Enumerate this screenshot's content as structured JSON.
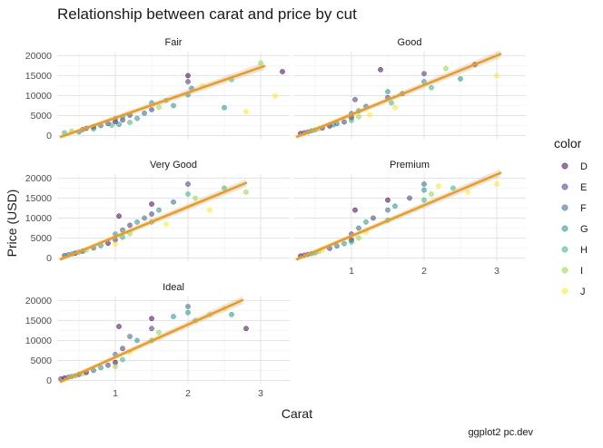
{
  "chart_data": {
    "type": "scatter",
    "title": "Relationship between carat and price by cut",
    "xlabel": "Carat",
    "ylabel": "Price (USD)",
    "caption": "ggplot2 pc.dev",
    "xlim": [
      0.2,
      3.4
    ],
    "ylim": [
      -800,
      21000
    ],
    "x_ticks": [
      1,
      2,
      3
    ],
    "y_ticks": [
      0,
      5000,
      10000,
      15000,
      20000
    ],
    "grid": true,
    "legend_title": "color",
    "legend_position": "right",
    "point_alpha": 0.55,
    "fit_line_color": "#F39C12",
    "fit_band_color": "#BBBBBB",
    "color_levels": [
      {
        "label": "D",
        "color": "#440154"
      },
      {
        "label": "E",
        "color": "#443983"
      },
      {
        "label": "F",
        "color": "#31688E"
      },
      {
        "label": "G",
        "color": "#21918C"
      },
      {
        "label": "H",
        "color": "#35B779"
      },
      {
        "label": "I",
        "color": "#90D743"
      },
      {
        "label": "J",
        "color": "#FDE725"
      }
    ],
    "panels": [
      {
        "label": "Fair",
        "fit": {
          "x0": 0.25,
          "x1": 3.05,
          "y0": -300,
          "y1": 17400
        },
        "points": [
          [
            0.3,
            700,
            "H"
          ],
          [
            0.4,
            1100,
            "I"
          ],
          [
            0.5,
            900,
            "G"
          ],
          [
            0.55,
            1500,
            "F"
          ],
          [
            0.6,
            1800,
            "E"
          ],
          [
            0.7,
            2200,
            "D"
          ],
          [
            0.7,
            1700,
            "G"
          ],
          [
            0.8,
            2500,
            "F"
          ],
          [
            0.9,
            3000,
            "E"
          ],
          [
            0.95,
            2600,
            "H"
          ],
          [
            1.0,
            3500,
            "D"
          ],
          [
            1.0,
            4200,
            "F"
          ],
          [
            1.05,
            2800,
            "G"
          ],
          [
            1.1,
            3900,
            "E"
          ],
          [
            1.1,
            4700,
            "G"
          ],
          [
            1.2,
            5100,
            "E"
          ],
          [
            1.2,
            3300,
            "H"
          ],
          [
            1.3,
            4300,
            "G"
          ],
          [
            1.4,
            5600,
            "F"
          ],
          [
            1.5,
            6500,
            "E"
          ],
          [
            1.5,
            8200,
            "G"
          ],
          [
            1.6,
            7100,
            "I"
          ],
          [
            1.7,
            8800,
            "H"
          ],
          [
            1.8,
            7500,
            "G"
          ],
          [
            2.0,
            13500,
            "E"
          ],
          [
            2.0,
            15000,
            "D"
          ],
          [
            2.0,
            10200,
            "G"
          ],
          [
            2.05,
            11800,
            "F"
          ],
          [
            2.2,
            12500,
            "J"
          ],
          [
            2.5,
            7000,
            "G"
          ],
          [
            2.6,
            14000,
            "H"
          ],
          [
            2.8,
            6000,
            "J"
          ],
          [
            3.0,
            18200,
            "I"
          ],
          [
            3.2,
            9900,
            "J"
          ],
          [
            3.3,
            16000,
            "D"
          ]
        ]
      },
      {
        "label": "Good",
        "fit": {
          "x0": 0.25,
          "x1": 3.05,
          "y0": -300,
          "y1": 20400
        },
        "points": [
          [
            0.3,
            500,
            "D"
          ],
          [
            0.35,
            700,
            "E"
          ],
          [
            0.4,
            900,
            "F"
          ],
          [
            0.45,
            1200,
            "G"
          ],
          [
            0.5,
            1400,
            "H"
          ],
          [
            0.55,
            1700,
            "I"
          ],
          [
            0.6,
            1900,
            "E"
          ],
          [
            0.7,
            2400,
            "D"
          ],
          [
            0.75,
            2700,
            "G"
          ],
          [
            0.8,
            3000,
            "F"
          ],
          [
            0.9,
            3400,
            "E"
          ],
          [
            1.0,
            4500,
            "D"
          ],
          [
            1.0,
            5500,
            "F"
          ],
          [
            1.0,
            3800,
            "H"
          ],
          [
            1.05,
            9000,
            "E"
          ],
          [
            1.1,
            6200,
            "G"
          ],
          [
            1.1,
            4700,
            "I"
          ],
          [
            1.2,
            7300,
            "F"
          ],
          [
            1.25,
            5200,
            "J"
          ],
          [
            1.4,
            16500,
            "D"
          ],
          [
            1.5,
            9500,
            "E"
          ],
          [
            1.5,
            11000,
            "G"
          ],
          [
            1.55,
            8200,
            "H"
          ],
          [
            1.6,
            7000,
            "J"
          ],
          [
            1.7,
            10500,
            "F"
          ],
          [
            2.0,
            13500,
            "G"
          ],
          [
            2.0,
            15500,
            "E"
          ],
          [
            2.1,
            12000,
            "H"
          ],
          [
            2.3,
            16800,
            "I"
          ],
          [
            2.5,
            14200,
            "G"
          ],
          [
            2.7,
            17800,
            "D"
          ],
          [
            3.0,
            15000,
            "J"
          ]
        ]
      },
      {
        "label": "Very Good",
        "fit": {
          "x0": 0.25,
          "x1": 2.8,
          "y0": -300,
          "y1": 18800
        },
        "points": [
          [
            0.3,
            600,
            "E"
          ],
          [
            0.35,
            800,
            "F"
          ],
          [
            0.4,
            1000,
            "G"
          ],
          [
            0.45,
            1200,
            "D"
          ],
          [
            0.5,
            1500,
            "H"
          ],
          [
            0.55,
            1700,
            "E"
          ],
          [
            0.6,
            2000,
            "I"
          ],
          [
            0.7,
            2500,
            "F"
          ],
          [
            0.8,
            3100,
            "G"
          ],
          [
            0.9,
            3700,
            "D"
          ],
          [
            1.0,
            4500,
            "E"
          ],
          [
            1.0,
            6000,
            "G"
          ],
          [
            1.0,
            3500,
            "J"
          ],
          [
            1.05,
            10500,
            "D"
          ],
          [
            1.1,
            7000,
            "F"
          ],
          [
            1.1,
            5200,
            "H"
          ],
          [
            1.2,
            8200,
            "E"
          ],
          [
            1.2,
            6100,
            "I"
          ],
          [
            1.3,
            9000,
            "G"
          ],
          [
            1.4,
            10000,
            "F"
          ],
          [
            1.5,
            11000,
            "E"
          ],
          [
            1.5,
            13500,
            "D"
          ],
          [
            1.5,
            9000,
            "H"
          ],
          [
            1.6,
            12000,
            "G"
          ],
          [
            1.7,
            8500,
            "J"
          ],
          [
            1.8,
            14000,
            "F"
          ],
          [
            2.0,
            16000,
            "H"
          ],
          [
            2.0,
            18500,
            "E"
          ],
          [
            2.1,
            15000,
            "I"
          ],
          [
            2.3,
            12000,
            "J"
          ],
          [
            2.5,
            17500,
            "H"
          ],
          [
            2.8,
            16500,
            "I"
          ]
        ]
      },
      {
        "label": "Premium",
        "fit": {
          "x0": 0.25,
          "x1": 3.05,
          "y0": -300,
          "y1": 21300
        },
        "points": [
          [
            0.3,
            500,
            "D"
          ],
          [
            0.35,
            700,
            "E"
          ],
          [
            0.4,
            900,
            "F"
          ],
          [
            0.45,
            1100,
            "G"
          ],
          [
            0.5,
            1300,
            "H"
          ],
          [
            0.55,
            1600,
            "I"
          ],
          [
            0.6,
            1900,
            "J"
          ],
          [
            0.7,
            2400,
            "E"
          ],
          [
            0.8,
            3000,
            "F"
          ],
          [
            0.9,
            3600,
            "G"
          ],
          [
            1.0,
            4500,
            "D"
          ],
          [
            1.0,
            6000,
            "E"
          ],
          [
            1.0,
            4000,
            "H"
          ],
          [
            1.05,
            12000,
            "D"
          ],
          [
            1.1,
            7500,
            "F"
          ],
          [
            1.1,
            5000,
            "I"
          ],
          [
            1.2,
            9000,
            "G"
          ],
          [
            1.2,
            6500,
            "J"
          ],
          [
            1.3,
            10000,
            "E"
          ],
          [
            1.5,
            12000,
            "F"
          ],
          [
            1.5,
            14500,
            "D"
          ],
          [
            1.5,
            9500,
            "H"
          ],
          [
            1.6,
            13000,
            "G"
          ],
          [
            1.8,
            15000,
            "E"
          ],
          [
            2.0,
            17000,
            "G"
          ],
          [
            2.0,
            18500,
            "F"
          ],
          [
            2.0,
            14500,
            "H"
          ],
          [
            2.1,
            16000,
            "I"
          ],
          [
            2.2,
            18000,
            "J"
          ],
          [
            2.4,
            17500,
            "H"
          ],
          [
            2.6,
            16500,
            "J"
          ],
          [
            3.0,
            18500,
            "J"
          ]
        ]
      },
      {
        "label": "Ideal",
        "fit": {
          "x0": 0.25,
          "x1": 2.75,
          "y0": -300,
          "y1": 20100
        },
        "points": [
          [
            0.25,
            400,
            "E"
          ],
          [
            0.3,
            600,
            "D"
          ],
          [
            0.35,
            800,
            "F"
          ],
          [
            0.4,
            1000,
            "G"
          ],
          [
            0.45,
            1200,
            "H"
          ],
          [
            0.5,
            1500,
            "E"
          ],
          [
            0.55,
            1700,
            "I"
          ],
          [
            0.6,
            2000,
            "D"
          ],
          [
            0.7,
            2500,
            "F"
          ],
          [
            0.8,
            3200,
            "G"
          ],
          [
            0.9,
            3800,
            "E"
          ],
          [
            1.0,
            4500,
            "D"
          ],
          [
            1.0,
            6500,
            "F"
          ],
          [
            1.0,
            3500,
            "I"
          ],
          [
            1.05,
            13500,
            "D"
          ],
          [
            1.1,
            8000,
            "E"
          ],
          [
            1.1,
            5200,
            "H"
          ],
          [
            1.2,
            11000,
            "F"
          ],
          [
            1.2,
            7000,
            "J"
          ],
          [
            1.3,
            10000,
            "G"
          ],
          [
            1.5,
            13000,
            "E"
          ],
          [
            1.5,
            15500,
            "D"
          ],
          [
            1.5,
            10000,
            "H"
          ],
          [
            1.6,
            12000,
            "I"
          ],
          [
            1.8,
            16000,
            "G"
          ],
          [
            2.0,
            18500,
            "F"
          ],
          [
            2.0,
            17000,
            "G"
          ],
          [
            2.1,
            15000,
            "H"
          ],
          [
            2.3,
            16500,
            "I"
          ],
          [
            2.5,
            18000,
            "J"
          ],
          [
            2.6,
            16500,
            "G"
          ],
          [
            2.8,
            13000,
            "D"
          ]
        ]
      }
    ]
  }
}
